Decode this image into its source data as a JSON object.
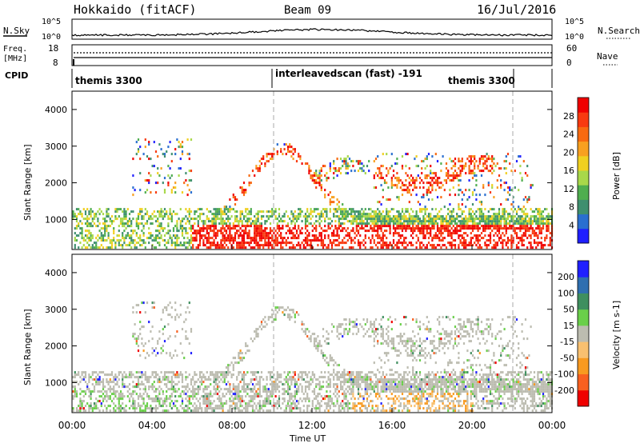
{
  "header": {
    "station": "Hokkaido (fitACF)",
    "beam": "Beam 09",
    "date": "16/Jul/2016"
  },
  "noise_panel": {
    "left_label": "N.Sky",
    "right_label": "N.Search",
    "ticks_top": "10^5",
    "ticks_bottom": "10^0",
    "right_ticks_top": "10^5",
    "right_ticks_bottom": "10^0"
  },
  "freq_panel": {
    "left_label_1": "Freq.",
    "left_label_2": "[MHz]",
    "tick_top": "18",
    "tick_bottom": "8",
    "right_label": "Nave",
    "right_tick_top": "60",
    "right_tick_bottom": "0"
  },
  "cpid": {
    "label": "CPID",
    "segments": [
      "themis 3300",
      "interleavedscan (fast) -191",
      "themis 3300"
    ]
  },
  "chart_data": [
    {
      "type": "heatmap",
      "name": "power",
      "ylabel": "Slant Range [km]",
      "xlabel": "",
      "ylim": [
        180,
        4500
      ],
      "yticks": [
        "1000",
        "2000",
        "3000",
        "4000"
      ],
      "xlim_hours": [
        0,
        24
      ],
      "colorbar": {
        "label": "Power [dB]",
        "ticks": [
          "4",
          "8",
          "12",
          "16",
          "20",
          "24",
          "28"
        ],
        "colors": [
          "#1f1fff",
          "#2a6fd0",
          "#3f8f6f",
          "#4fae4f",
          "#a8d84a",
          "#f0d020",
          "#f8a020",
          "#f86a10",
          "#f83a10",
          "#f00000"
        ]
      }
    },
    {
      "type": "heatmap",
      "name": "velocity",
      "ylabel": "Slant Range [km]",
      "xlabel": "Time UT",
      "ylim": [
        180,
        4500
      ],
      "yticks": [
        "1000",
        "2000",
        "3000",
        "4000"
      ],
      "xticks": [
        "00:00",
        "04:00",
        "08:00",
        "12:00",
        "16:00",
        "20:00",
        "00:00"
      ],
      "xlim_hours": [
        0,
        24
      ],
      "colorbar": {
        "label": "Velocity [m s-1]",
        "ticks": [
          "200",
          "100",
          "50",
          "15",
          "-15",
          "-50",
          "-100",
          "-200"
        ],
        "colors": [
          "#2020ff",
          "#2f6fb0",
          "#3f8f5f",
          "#6acf4a",
          "#bcbcb0",
          "#f8c070",
          "#f89a20",
          "#f86020",
          "#f00000"
        ]
      }
    }
  ]
}
